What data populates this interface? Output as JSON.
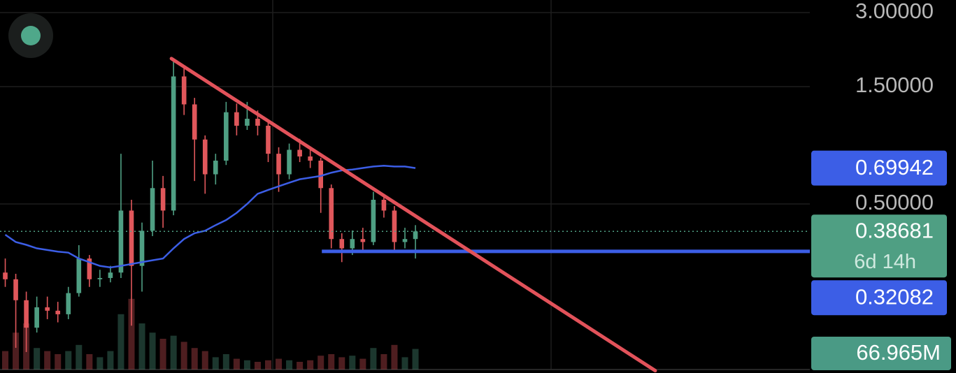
{
  "chart_data": {
    "type": "candlestick",
    "yscale": "log",
    "ylim": [
      0.1027,
      3.375
    ],
    "xlim": [
      -0.5,
      76.5
    ],
    "yticks": [
      {
        "value": 3,
        "label": "3.00000"
      },
      {
        "value": 1.5,
        "label": "1.50000"
      },
      {
        "value": 0.5,
        "label": "0.50000"
      }
    ],
    "grid": true,
    "up_color": "#4f9f83",
    "down_color": "#e0575b",
    "open": [
      0.263,
      0.247,
      0.203,
      0.157,
      0.19,
      0.184,
      0.178,
      0.217,
      0.3,
      0.247,
      0.25,
      0.263,
      0.47,
      0.28,
      0.389,
      0.58,
      0.47,
      1.65,
      1.27,
      0.914,
      0.66,
      0.75,
      1.18,
      1.04,
      1.11,
      1.04,
      0.8,
      0.66,
      0.83,
      0.78,
      0.75,
      0.58,
      0.36,
      0.33,
      0.36,
      0.35,
      0.52,
      0.47,
      0.35,
      0.36
    ],
    "high": [
      0.3,
      0.26,
      0.22,
      0.21,
      0.21,
      0.2,
      0.23,
      0.34,
      0.31,
      0.27,
      0.28,
      0.8,
      0.52,
      0.42,
      0.75,
      0.65,
      1.95,
      1.8,
      1.35,
      0.95,
      0.8,
      1.3,
      1.28,
      1.3,
      1.2,
      1.08,
      0.85,
      0.88,
      0.92,
      0.85,
      0.77,
      0.6,
      0.38,
      0.39,
      0.4,
      0.56,
      0.55,
      0.49,
      0.4,
      0.41
    ],
    "low": [
      0.23,
      0.13,
      0.125,
      0.15,
      0.17,
      0.165,
      0.17,
      0.21,
      0.23,
      0.23,
      0.24,
      0.25,
      0.16,
      0.22,
      0.37,
      0.4,
      0.45,
      1.15,
      0.62,
      0.55,
      0.6,
      0.72,
      0.95,
      1.0,
      0.95,
      0.74,
      0.56,
      0.63,
      0.74,
      0.7,
      0.46,
      0.33,
      0.29,
      0.31,
      0.32,
      0.34,
      0.44,
      0.32,
      0.33,
      0.3
    ],
    "close": [
      0.247,
      0.203,
      0.157,
      0.19,
      0.184,
      0.178,
      0.217,
      0.3,
      0.247,
      0.25,
      0.263,
      0.47,
      0.28,
      0.389,
      0.58,
      0.47,
      1.65,
      1.27,
      0.914,
      0.66,
      0.75,
      1.18,
      1.04,
      1.11,
      1.04,
      0.8,
      0.66,
      0.83,
      0.78,
      0.75,
      0.58,
      0.36,
      0.33,
      0.36,
      0.35,
      0.52,
      0.47,
      0.35,
      0.36,
      0.38681
    ],
    "moving_average": {
      "color": "#3c5ee6",
      "values": [
        0.375,
        0.35,
        0.341,
        0.33,
        0.325,
        0.32,
        0.317,
        0.3,
        0.29,
        0.28,
        0.276,
        0.28,
        0.285,
        0.29,
        0.295,
        0.3,
        0.33,
        0.36,
        0.38,
        0.389,
        0.41,
        0.43,
        0.46,
        0.5,
        0.55,
        0.57,
        0.59,
        0.61,
        0.63,
        0.64,
        0.65,
        0.67,
        0.685,
        0.69,
        0.7,
        0.71,
        0.715,
        0.71,
        0.71,
        0.69942
      ]
    },
    "trendline": {
      "color": "#e2525a",
      "x": [
        15.8,
        61.8
      ],
      "y": [
        1.95,
        0.105
      ]
    },
    "level": {
      "color": "#3c5ee6",
      "value": 0.32082,
      "x_start": 30.1
    },
    "countdown": "6d 14h",
    "volume": {
      "vlim": [
        0,
        250
      ],
      "label": "66.965M",
      "values": [
        60,
        120,
        150,
        70,
        60,
        50,
        60,
        80,
        50,
        40,
        60,
        180,
        230,
        150,
        120,
        100,
        110,
        90,
        70,
        60,
        40,
        50,
        35,
        30,
        25,
        30,
        35,
        30,
        25,
        30,
        45,
        50,
        40,
        45,
        35,
        70,
        50,
        80,
        40,
        66.965
      ]
    }
  }
}
